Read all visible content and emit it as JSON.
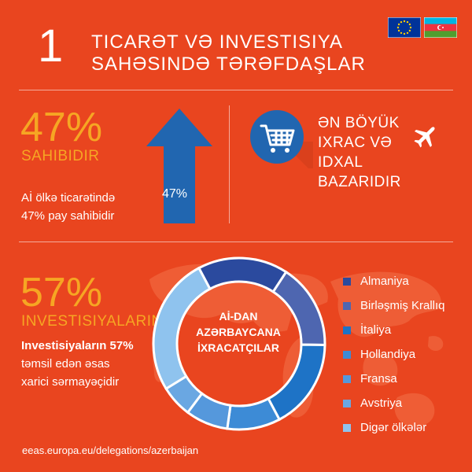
{
  "header": {
    "number": "1",
    "title_line1": "TICARƏT VƏ INVESTISIYA",
    "title_line2": "SAHƏSINDƏ TƏRƏFDAŞLAR"
  },
  "flags": [
    {
      "name": "eu-flag",
      "colors": [
        "#003399",
        "#FFCC00"
      ]
    },
    {
      "name": "azerbaijan-flag",
      "colors": [
        "#00B5E2",
        "#EF3340",
        "#509E2F"
      ]
    }
  ],
  "trade": {
    "percent": "47%",
    "label": "SAHIBIDIR",
    "desc_line1": "Aİ ölkə ticarətində",
    "desc_line2": "47% pay sahibidir",
    "arrow_value": "47%"
  },
  "market": {
    "line1": "ƏN BÖYÜK",
    "line2": "IXRAC VƏ",
    "line3": "IDXAL",
    "line4": "BAZARIDIR"
  },
  "investment": {
    "percent": "57%",
    "label": "INVESTISIYALARIN",
    "desc_line1": "Investisiyaların 57%",
    "desc_line2": "təmsil edən əsas",
    "desc_line3": "xarici sərmayəçidir"
  },
  "donut_center": {
    "line1": "Aİ-DAN",
    "line2": "AZƏRBAYCANA",
    "line3": "İXRACATÇILAR"
  },
  "colors": {
    "background": "#E9451F",
    "accent": "#F6A623",
    "arrow": "#2166B0"
  },
  "chart_data": {
    "type": "pie",
    "categories": [
      "Almaniya",
      "Birləşmiş Krallıq",
      "İtaliya",
      "Hollandiya",
      "Fransa",
      "Avstriya",
      "Digər ölkələr"
    ],
    "values": [
      17,
      16,
      17,
      10,
      8,
      6,
      26
    ],
    "colors": [
      "#2B4A9E",
      "#4E66B0",
      "#1E73C6",
      "#3D8BD6",
      "#5598DC",
      "#6AA7E2",
      "#8FC3EE"
    ],
    "legend_position": "right"
  },
  "footer": {
    "url": "eeas.europa.eu/delegations/azerbaijan"
  }
}
